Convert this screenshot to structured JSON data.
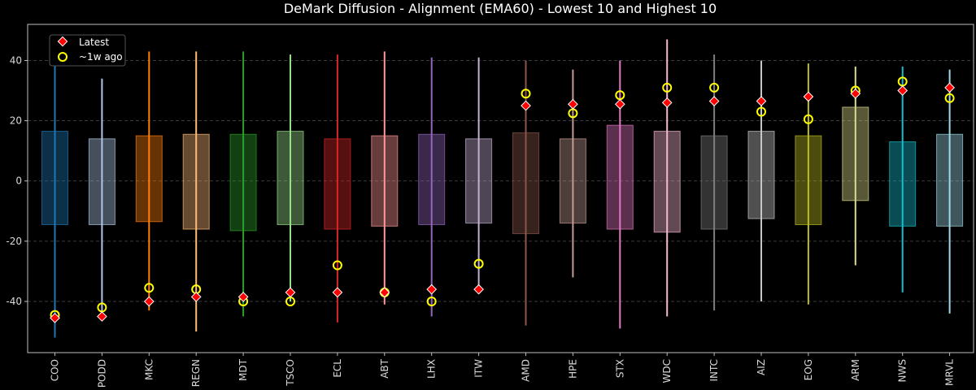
{
  "chart_data": {
    "type": "box-range",
    "title": "DeMark Diffusion - Alignment (EMA60) - Lowest 10 and Highest 10",
    "xlabel": "",
    "ylabel": "",
    "ylim": [
      -57,
      52
    ],
    "yticks": [
      -40,
      -20,
      0,
      20,
      40
    ],
    "grid": "horizontal dashed",
    "legend_position": "top-left",
    "legend": [
      {
        "label": "Latest",
        "marker": "red-diamond"
      },
      {
        "label": "~1w ago",
        "marker": "yellow-ring"
      }
    ],
    "categories": [
      "COO",
      "PODD",
      "MKC",
      "REGN",
      "MDT",
      "TSCO",
      "ECL",
      "ABT",
      "LHX",
      "ITW",
      "AMD",
      "HPE",
      "STX",
      "WDC",
      "INTC",
      "AIZ",
      "EOG",
      "ARM",
      "NWS",
      "MRVL"
    ],
    "colors": [
      "#1f77b4",
      "#aec7e8",
      "#ff7f0e",
      "#ffbb78",
      "#2ca02c",
      "#98df8a",
      "#d62728",
      "#ff9896",
      "#9467bd",
      "#c5b0d5",
      "#8c564b",
      "#c49c94",
      "#e377c2",
      "#f7b6d2",
      "#7f7f7f",
      "#c7c7c7",
      "#bcbd22",
      "#dbdb8d",
      "#17becf",
      "#9edae5"
    ],
    "range_min": [
      -52,
      -45,
      -43,
      -50,
      -45,
      -40,
      -47,
      -41,
      -45,
      -37,
      -48,
      -32,
      -49,
      -45,
      -43,
      -40,
      -41,
      -28,
      -37,
      -44
    ],
    "range_max": [
      42,
      34,
      43,
      43,
      43,
      42,
      42,
      43,
      41,
      41,
      40,
      37,
      40,
      47,
      42,
      40,
      39,
      38,
      38,
      37
    ],
    "box_low": [
      -14.5,
      -14.5,
      -13.5,
      -16,
      -16.5,
      -14.5,
      -16,
      -15,
      -14.5,
      -14,
      -17.5,
      -14,
      -16,
      -17,
      -16,
      -12.5,
      -14.5,
      -6.5,
      -15,
      -15
    ],
    "box_high": [
      16.5,
      14,
      15,
      15.5,
      15.5,
      16.5,
      14,
      15,
      15.5,
      14,
      16,
      14,
      18.5,
      16.5,
      15,
      16.5,
      15,
      24.5,
      13,
      15.5
    ],
    "latest": [
      -45.5,
      -45,
      -40,
      -38.5,
      -38.5,
      -37,
      -37,
      -37,
      -36,
      -36,
      25,
      25.5,
      25.5,
      26,
      26.5,
      26.5,
      28,
      29,
      30,
      31
    ],
    "week_ago": [
      -44.5,
      -42,
      -35.5,
      -36,
      -40,
      -40,
      -28,
      -37,
      -40,
      -27.5,
      29,
      22.5,
      28.5,
      31,
      31,
      23,
      20.5,
      30,
      33,
      27.5
    ]
  }
}
